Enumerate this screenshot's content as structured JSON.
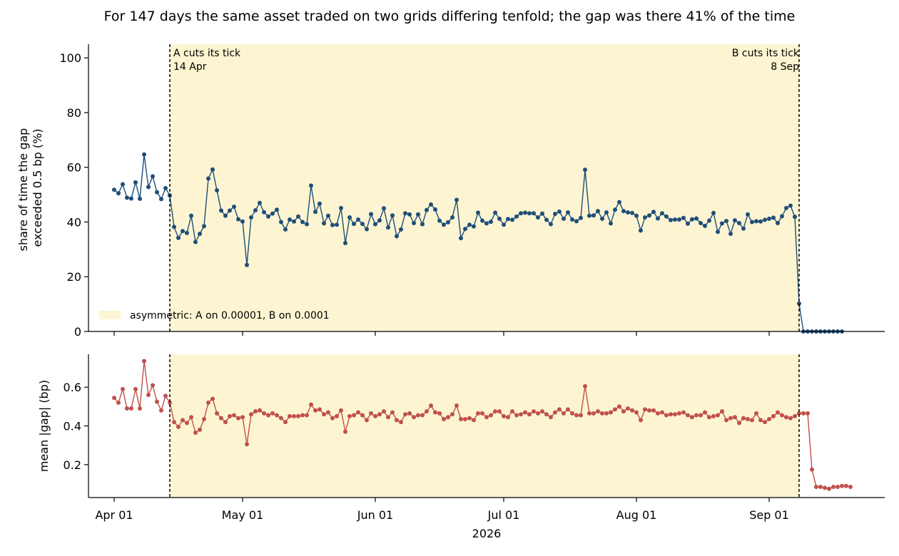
{
  "title": "For 147 days the same asset traded on two grids differing tenfold; the gap was there 41% of the time",
  "colors": {
    "top_series": "#1f4e79",
    "bottom_series": "#c0504d",
    "regime_fill": "#fdf5d2",
    "axis": "#000000"
  },
  "chart_data": [
    {
      "type": "line",
      "panel": "top",
      "ylabel_lines": [
        "share of time the gap",
        "exceeded 0.5 bp (%)"
      ],
      "ylim": [
        0,
        105
      ],
      "yticks": [
        0,
        20,
        40,
        60,
        80,
        100
      ],
      "grid": false,
      "x_dates": "daily, 2026-04-01 to 2026-09-18",
      "values": [
        51.8,
        50.5,
        53.8,
        48.9,
        48.6,
        54.5,
        48.5,
        64.7,
        52.8,
        56.7,
        50.9,
        48.4,
        52.4,
        49.7,
        38.2,
        34.2,
        36.7,
        36.0,
        42.3,
        32.7,
        35.7,
        38.5,
        55.9,
        59.2,
        51.6,
        44.2,
        42.3,
        44.2,
        45.6,
        41.0,
        40.2,
        24.3,
        41.7,
        44.3,
        47.0,
        43.6,
        42.0,
        43.1,
        44.5,
        40.0,
        37.3,
        40.9,
        40.2,
        42.0,
        40.0,
        39.2,
        53.3,
        43.7,
        46.7,
        39.5,
        42.3,
        38.9,
        39.0,
        45.1,
        32.3,
        41.7,
        39.3,
        40.9,
        39.3,
        37.4,
        42.9,
        39.2,
        40.6,
        45.0,
        38.0,
        42.4,
        34.8,
        37.3,
        43.2,
        42.8,
        39.6,
        42.8,
        39.2,
        44.4,
        46.4,
        44.6,
        40.5,
        39.0,
        39.9,
        41.7,
        48.1,
        34.1,
        37.5,
        39.0,
        38.4,
        43.4,
        40.5,
        39.5,
        40.1,
        43.4,
        41.2,
        39.0,
        41.1,
        40.8,
        42.0,
        43.2,
        43.4,
        43.2,
        43.2,
        41.7,
        43.1,
        40.8,
        39.2,
        43.0,
        43.8,
        41.2,
        43.5,
        40.9,
        40.3,
        41.5,
        59.1,
        42.3,
        42.4,
        44.0,
        41.2,
        43.5,
        39.5,
        44.5,
        47.3,
        44.0,
        43.5,
        43.3,
        42.3,
        36.9,
        41.7,
        42.4,
        43.7,
        41.3,
        43.2,
        42.0,
        40.7,
        40.9,
        40.9,
        41.5,
        39.4,
        41.0,
        41.3,
        39.6,
        38.6,
        40.5,
        43.3,
        36.4,
        39.5,
        40.4,
        35.7,
        40.6,
        39.6,
        37.6,
        42.8,
        40.0,
        40.3,
        40.2,
        40.8,
        41.2,
        41.6,
        39.6,
        42.1,
        45.1,
        46.0,
        41.9,
        10.2,
        0,
        0,
        0,
        0,
        0,
        0,
        0,
        0,
        0,
        0
      ]
    },
    {
      "type": "line",
      "panel": "bottom",
      "ylabel": "mean |gap| (bp)",
      "ylim": [
        0.03,
        0.77
      ],
      "yticks": [
        0.2,
        0.4,
        0.6
      ],
      "grid": false,
      "x_dates": "daily, 2026-04-01 to 2026-09-18",
      "values": [
        0.545,
        0.52,
        0.59,
        0.49,
        0.49,
        0.59,
        0.49,
        0.735,
        0.56,
        0.61,
        0.525,
        0.48,
        0.555,
        0.52,
        0.42,
        0.395,
        0.43,
        0.415,
        0.445,
        0.365,
        0.38,
        0.435,
        0.52,
        0.54,
        0.465,
        0.44,
        0.42,
        0.45,
        0.455,
        0.44,
        0.445,
        0.305,
        0.46,
        0.475,
        0.48,
        0.465,
        0.455,
        0.465,
        0.455,
        0.44,
        0.42,
        0.45,
        0.45,
        0.45,
        0.455,
        0.455,
        0.51,
        0.48,
        0.485,
        0.46,
        0.47,
        0.44,
        0.45,
        0.48,
        0.37,
        0.45,
        0.455,
        0.47,
        0.455,
        0.43,
        0.465,
        0.45,
        0.46,
        0.475,
        0.445,
        0.47,
        0.43,
        0.42,
        0.46,
        0.465,
        0.445,
        0.455,
        0.455,
        0.475,
        0.505,
        0.47,
        0.465,
        0.435,
        0.445,
        0.46,
        0.505,
        0.435,
        0.435,
        0.44,
        0.43,
        0.465,
        0.465,
        0.445,
        0.455,
        0.475,
        0.475,
        0.45,
        0.445,
        0.475,
        0.455,
        0.46,
        0.47,
        0.46,
        0.475,
        0.465,
        0.475,
        0.46,
        0.445,
        0.47,
        0.485,
        0.465,
        0.485,
        0.465,
        0.455,
        0.455,
        0.605,
        0.465,
        0.465,
        0.475,
        0.465,
        0.465,
        0.47,
        0.485,
        0.5,
        0.475,
        0.49,
        0.48,
        0.47,
        0.43,
        0.485,
        0.48,
        0.48,
        0.465,
        0.47,
        0.455,
        0.46,
        0.46,
        0.465,
        0.47,
        0.455,
        0.445,
        0.455,
        0.455,
        0.47,
        0.445,
        0.45,
        0.455,
        0.475,
        0.43,
        0.44,
        0.445,
        0.415,
        0.44,
        0.435,
        0.43,
        0.465,
        0.43,
        0.42,
        0.435,
        0.45,
        0.47,
        0.455,
        0.445,
        0.44,
        0.45,
        0.465,
        0.465,
        0.465,
        0.175,
        0.085,
        0.085,
        0.08,
        0.075,
        0.085,
        0.085,
        0.09,
        0.09,
        0.085
      ]
    }
  ],
  "x_axis": {
    "label": "2026",
    "tick_labels": [
      "Apr 01",
      "May 01",
      "Jun 01",
      "Jul 01",
      "Aug 01",
      "Sep 01"
    ],
    "tick_dates": [
      "2026-04-01",
      "2026-05-01",
      "2026-06-01",
      "2026-07-01",
      "2026-08-01",
      "2026-09-01"
    ],
    "start_date": "2026-04-01",
    "xlim_dates": [
      "2026-03-26",
      "2026-09-28"
    ]
  },
  "regime": {
    "start_date": "2026-04-14",
    "end_date": "2026-09-08",
    "legend_label": "asymmetric: A on 0.00001, B on 0.0001",
    "legend_position": "lower-left"
  },
  "annotations": {
    "a_line1": "A cuts its tick",
    "a_line2": "14 Apr",
    "b_line1": "B cuts its tick",
    "b_line2": "8 Sep"
  }
}
